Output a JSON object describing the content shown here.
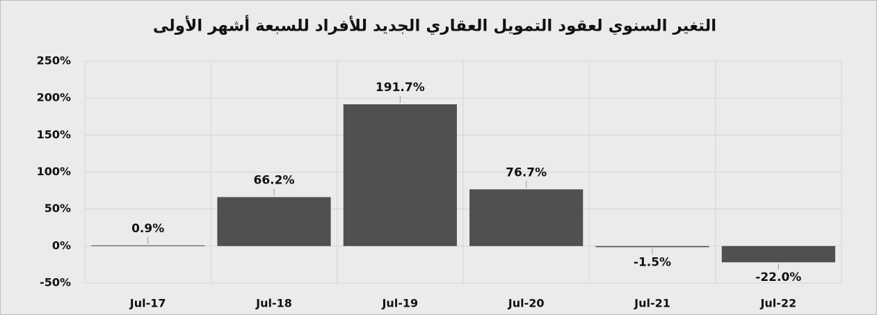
{
  "chart_data": {
    "type": "bar",
    "title": "التغير السنوي لعقود التمويل العقاري الجديد للأفراد للسبعة أشهر الأولى",
    "categories": [
      "Jul-17",
      "Jul-18",
      "Jul-19",
      "Jul-20",
      "Jul-21",
      "Jul-22"
    ],
    "values": [
      0.9,
      66.2,
      191.7,
      76.7,
      -1.5,
      -22.0
    ],
    "value_labels": [
      "0.9%",
      "66.2%",
      "191.7%",
      "76.7%",
      "-1.5%",
      "-22.0%"
    ],
    "color": "#505050",
    "ylim": [
      -50,
      250
    ],
    "yticks": [
      {
        "value": -50,
        "label": "-50%"
      },
      {
        "value": 0,
        "label": "0%"
      },
      {
        "value": 50,
        "label": "50%"
      },
      {
        "value": 100,
        "label": "100%"
      },
      {
        "value": 150,
        "label": "150%"
      },
      {
        "value": 200,
        "label": "200%"
      },
      {
        "value": 250,
        "label": "250%"
      }
    ],
    "grid": true
  }
}
